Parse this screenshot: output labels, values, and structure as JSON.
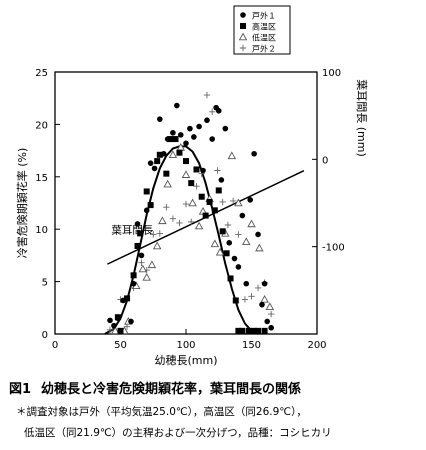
{
  "chart_data": {
    "type": "scatter",
    "xlabel": "幼穂長(mm)",
    "ylabel": "冷害危険期穎花率 (%)",
    "y2label": "葉耳間長 (mm)",
    "xlim": [
      0,
      200
    ],
    "ylim": [
      0,
      25
    ],
    "y2lim": [
      -200,
      100
    ],
    "x_ticks": [
      "0",
      "50",
      "100",
      "150",
      "200"
    ],
    "y_ticks": [
      "0",
      "5",
      "10",
      "15",
      "20",
      "25"
    ],
    "y2_ticks": [
      "-100",
      "0",
      "100"
    ],
    "legend_position": "top-right",
    "series": [
      {
        "name": "戸外１",
        "marker": "filled-circle",
        "points": [
          [
            42,
            1.3
          ],
          [
            45,
            0.8
          ],
          [
            48,
            1.5
          ],
          [
            52,
            3.2
          ],
          [
            58,
            1.2
          ],
          [
            60,
            4.8
          ],
          [
            63,
            10.5
          ],
          [
            66,
            7.5
          ],
          [
            70,
            11.8
          ],
          [
            73,
            16.3
          ],
          [
            76,
            15.8
          ],
          [
            80,
            20.5
          ],
          [
            83,
            17.2
          ],
          [
            86,
            18.6
          ],
          [
            90,
            19.2
          ],
          [
            93,
            21.8
          ],
          [
            96,
            19.0
          ],
          [
            100,
            18.2
          ],
          [
            103,
            19.6
          ],
          [
            106,
            18.8
          ],
          [
            110,
            19.8
          ],
          [
            113,
            15.6
          ],
          [
            116,
            20.4
          ],
          [
            120,
            18.6
          ],
          [
            123,
            21.6
          ],
          [
            125,
            21.3
          ],
          [
            127,
            14.7
          ],
          [
            130,
            19.6
          ],
          [
            133,
            8.7
          ],
          [
            137,
            7.2
          ],
          [
            140,
            6.4
          ],
          [
            143,
            11.3
          ],
          [
            146,
            4.8
          ],
          [
            149,
            12.8
          ],
          [
            152,
            17.2
          ],
          [
            155,
            9.5
          ],
          [
            158,
            2.8
          ],
          [
            160,
            4.8
          ],
          [
            162,
            1.2
          ],
          [
            165,
            0.6
          ]
        ]
      },
      {
        "name": "高温区",
        "marker": "filled-square",
        "points": [
          [
            48,
            1.6
          ],
          [
            50,
            0.3
          ],
          [
            55,
            3.4
          ],
          [
            60,
            5.6
          ],
          [
            63,
            8.4
          ],
          [
            65,
            9.6
          ],
          [
            70,
            13.6
          ],
          [
            73,
            12.3
          ],
          [
            78,
            16.5
          ],
          [
            80,
            17.1
          ],
          [
            85,
            15.3
          ],
          [
            88,
            18.6
          ],
          [
            92,
            18.6
          ],
          [
            95,
            17.3
          ],
          [
            100,
            16.5
          ],
          [
            104,
            14.4
          ],
          [
            108,
            15.7
          ],
          [
            112,
            13.1
          ],
          [
            115,
            11.3
          ],
          [
            118,
            12.6
          ],
          [
            122,
            11.8
          ],
          [
            125,
            13.7
          ],
          [
            128,
            9.8
          ],
          [
            131,
            7.7
          ],
          [
            134,
            5.3
          ],
          [
            138,
            3.2
          ],
          [
            140,
            0.3
          ],
          [
            143,
            0.3
          ],
          [
            148,
            0.3
          ],
          [
            152,
            0.3
          ],
          [
            155,
            0.3
          ],
          [
            160,
            0.3
          ]
        ]
      },
      {
        "name": "低温区",
        "marker": "open-triangle",
        "points": [
          [
            46,
            0.3
          ],
          [
            53,
            0.3
          ],
          [
            56,
            1.2
          ],
          [
            62,
            4.6
          ],
          [
            67,
            6.2
          ],
          [
            70,
            5.4
          ],
          [
            74,
            6.6
          ],
          [
            78,
            8.4
          ],
          [
            82,
            10.8
          ],
          [
            86,
            14.3
          ],
          [
            90,
            17.1
          ],
          [
            96,
            17.8
          ],
          [
            100,
            15.2
          ],
          [
            105,
            12.5
          ],
          [
            110,
            10.3
          ],
          [
            113,
            11.7
          ],
          [
            118,
            12.9
          ],
          [
            122,
            8.6
          ],
          [
            126,
            7.8
          ],
          [
            130,
            9.6
          ],
          [
            135,
            17.0
          ],
          [
            140,
            12.5
          ],
          [
            146,
            8.8
          ],
          [
            150,
            10.5
          ],
          [
            156,
            8.2
          ],
          [
            160,
            3.3
          ],
          [
            164,
            2.6
          ]
        ]
      },
      {
        "name": "戸外２",
        "marker": "plus",
        "points": [
          [
            42,
            0.4
          ],
          [
            50,
            3.3
          ],
          [
            55,
            0.7
          ],
          [
            60,
            4.4
          ],
          [
            66,
            6.8
          ],
          [
            70,
            6.1
          ],
          [
            75,
            9.5
          ],
          [
            80,
            9.6
          ],
          [
            85,
            12.1
          ],
          [
            90,
            11.0
          ],
          [
            95,
            10.6
          ],
          [
            100,
            12.4
          ],
          [
            104,
            10.7
          ],
          [
            108,
            14.1
          ],
          [
            112,
            15.3
          ],
          [
            116,
            22.8
          ],
          [
            120,
            21.2
          ],
          [
            124,
            15.6
          ],
          [
            128,
            12.6
          ],
          [
            132,
            10.4
          ],
          [
            136,
            12.7
          ],
          [
            140,
            9.5
          ],
          [
            145,
            3.3
          ],
          [
            150,
            3.6
          ],
          [
            155,
            4.4
          ],
          [
            160,
            4.9
          ],
          [
            165,
            1.9
          ]
        ]
      }
    ],
    "fitted_curve": {
      "axis": "left",
      "points": [
        [
          38,
          0
        ],
        [
          45,
          0.5
        ],
        [
          50,
          1.5
        ],
        [
          55,
          3.2
        ],
        [
          60,
          5.6
        ],
        [
          65,
          8.5
        ],
        [
          70,
          11.4
        ],
        [
          75,
          13.9
        ],
        [
          80,
          15.8
        ],
        [
          85,
          17.0
        ],
        [
          90,
          17.7
        ],
        [
          95,
          17.9
        ],
        [
          100,
          17.9
        ],
        [
          105,
          17.4
        ],
        [
          110,
          16.3
        ],
        [
          115,
          14.4
        ],
        [
          120,
          12.0
        ],
        [
          125,
          9.4
        ],
        [
          130,
          6.7
        ],
        [
          135,
          4.3
        ],
        [
          140,
          2.3
        ],
        [
          145,
          1.0
        ],
        [
          150,
          0.3
        ],
        [
          155,
          0
        ]
      ]
    },
    "trend_line": {
      "label": "葉耳間長",
      "axis": "right",
      "points": [
        [
          40,
          -120
        ],
        [
          190,
          -13
        ]
      ]
    }
  },
  "caption": {
    "number": "図1",
    "title": "幼穂長と冷害危険期穎花率，葉耳間長の関係"
  },
  "notes": {
    "line1": "＊調査対象は戸外（平均気温25.0℃），高温区（同26.9℃），",
    "line2": "低温区（同21.9℃）の主稈および一次分げつ，品種：コシヒカリ"
  }
}
